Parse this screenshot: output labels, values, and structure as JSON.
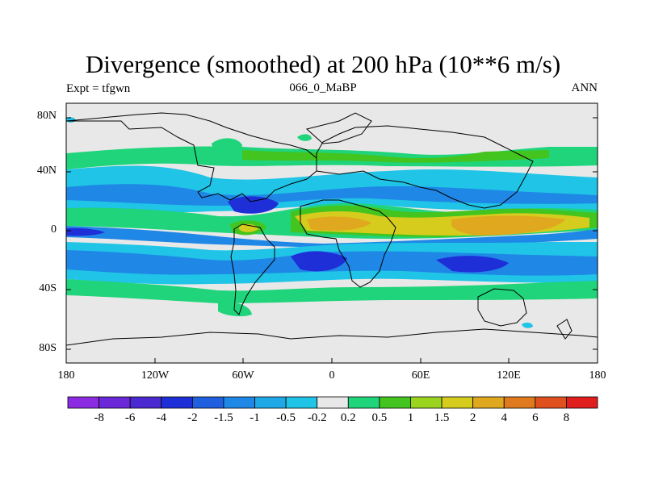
{
  "title": "Divergence (smoothed) at 200 hPa (10**6 m/s)",
  "subtitle_left": "Expt = tfgwn",
  "subtitle_center": "066_0_MaBP",
  "subtitle_right": "ANN",
  "lat_labels": [
    "80N",
    "40N",
    "0",
    "40S",
    "80S"
  ],
  "lon_labels": [
    "180",
    "120W",
    "60W",
    "0",
    "60E",
    "120E",
    "180"
  ],
  "colorbar": {
    "labels": [
      "-8",
      "-6",
      "-4",
      "-2",
      "-1.5",
      "-1",
      "-0.5",
      "-0.2",
      "0.2",
      "0.5",
      "1",
      "1.5",
      "2",
      "4",
      "6",
      "8"
    ],
    "colors": [
      "#8b2be2",
      "#6a28d8",
      "#4a2ad0",
      "#1f2fd8",
      "#1f5fe0",
      "#1f87e6",
      "#1fa8e6",
      "#1fc4e6",
      "#e8e8e8",
      "#1fd47a",
      "#44c41e",
      "#9ad41e",
      "#d6cc1e",
      "#e0a81e",
      "#e07a1e",
      "#e0501e",
      "#e01e1e"
    ]
  },
  "field_colors": {
    "neutral": "#e8e8e8",
    "neg_weak": "#1fc4e6",
    "neg_mid": "#1f87e6",
    "neg_strong": "#1f2fd8",
    "pos_weak": "#1fd47a",
    "pos_mid": "#44c41e",
    "pos_lime": "#9ad41e",
    "pos_yellow": "#d6cc1e",
    "pos_orange": "#e0a81e"
  }
}
